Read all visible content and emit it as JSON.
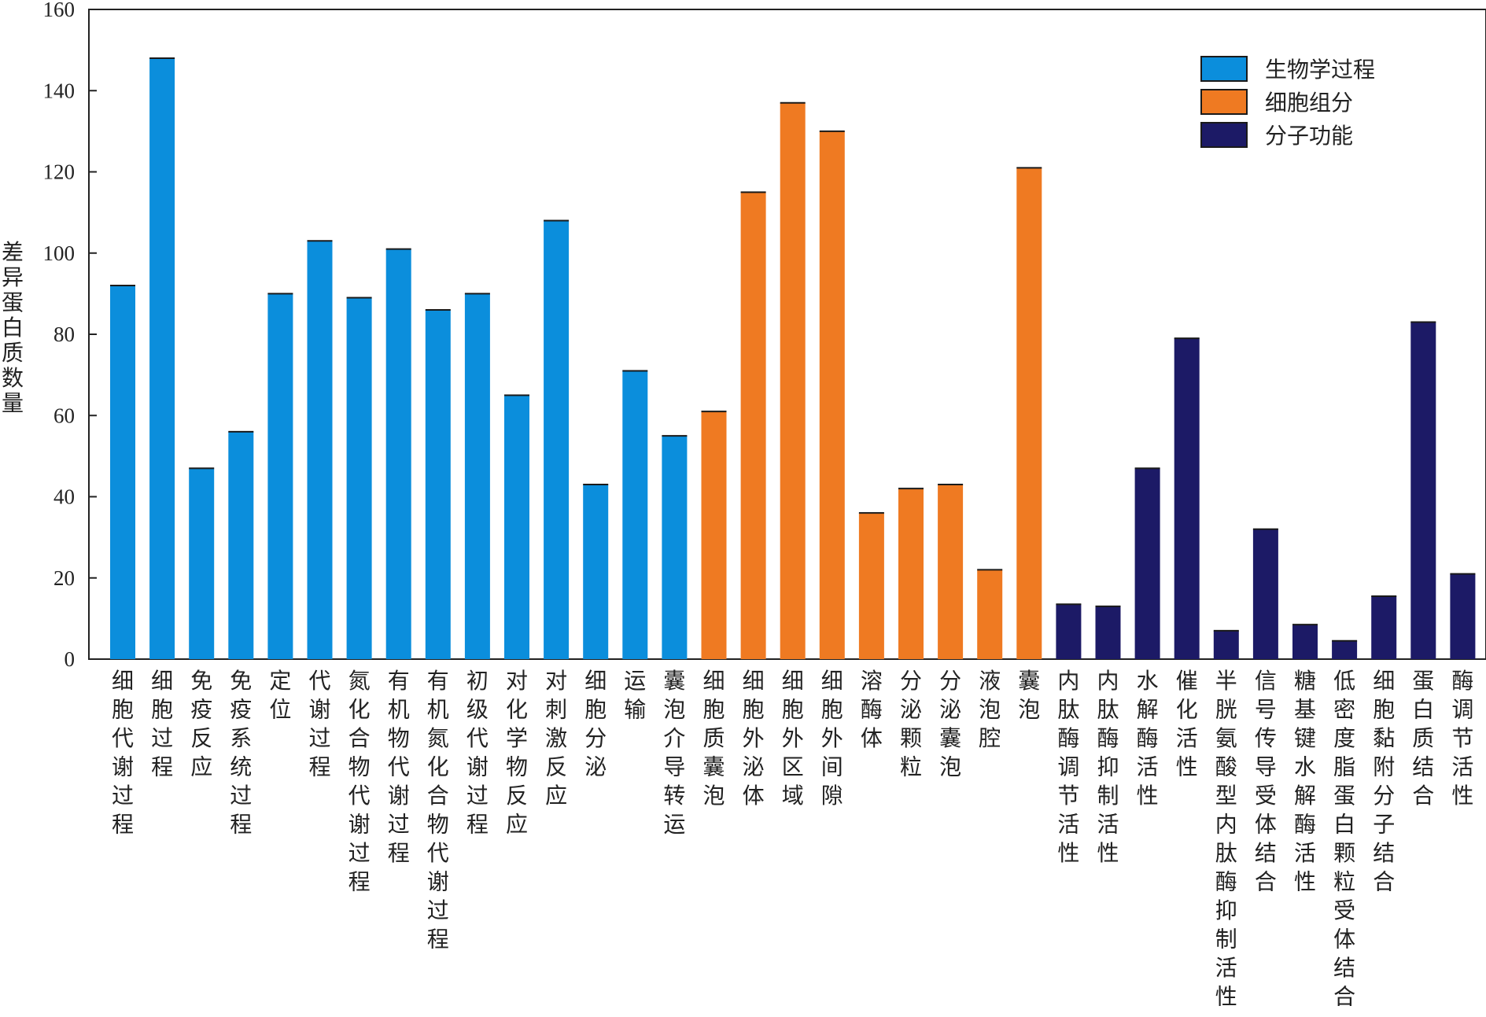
{
  "chart_data": {
    "type": "bar",
    "title": "",
    "xlabel": "",
    "ylabel": "差异蛋白质数量",
    "ylim": [
      0,
      160
    ],
    "yticks": [
      0,
      20,
      40,
      60,
      80,
      100,
      120,
      140,
      160
    ],
    "grid": false,
    "legend_position": "top-right",
    "series": [
      {
        "name": "生物学过程",
        "color": "#0b8edc",
        "categories": [
          "细胞代谢过程",
          "细胞过程",
          "免疫反应",
          "免疫系统过程",
          "定位",
          "代谢过程",
          "氮化合物代谢过程",
          "有机物代谢过程",
          "有机氮化合物代谢过程",
          "初级代谢过程",
          "对化学物反应",
          "对刺激反应",
          "细胞分泌",
          "运输",
          "囊泡介导转运"
        ],
        "values": [
          92,
          148,
          47,
          56,
          90,
          103,
          89,
          101,
          86,
          90,
          65,
          108,
          43,
          71,
          55
        ]
      },
      {
        "name": "细胞组分",
        "color": "#ef7a22",
        "categories": [
          "细胞质囊泡",
          "细胞外泌体",
          "细胞外区域",
          "细胞外间隙",
          "溶酶体",
          "分泌颗粒",
          "分泌囊泡",
          "液泡腔",
          "囊泡"
        ],
        "values": [
          61,
          115,
          137,
          130,
          36,
          42,
          43,
          22,
          121
        ]
      },
      {
        "name": "分子功能",
        "color": "#1c1a66",
        "categories": [
          "内肽酶调节活性",
          "内肽酶抑制活性",
          "水解酶活性",
          "催化活性",
          "半胱氨酸型内肽酶抑制活性",
          "信号传导受体结合",
          "糖基键水解酶活性",
          "低密度脂蛋白颗粒受体结合",
          "细胞黏附分子结合",
          "蛋白质结合",
          "酶调节活性"
        ],
        "values": [
          13.5,
          13,
          47,
          79,
          7,
          32,
          8.5,
          4.5,
          15.5,
          83,
          21
        ]
      }
    ]
  }
}
